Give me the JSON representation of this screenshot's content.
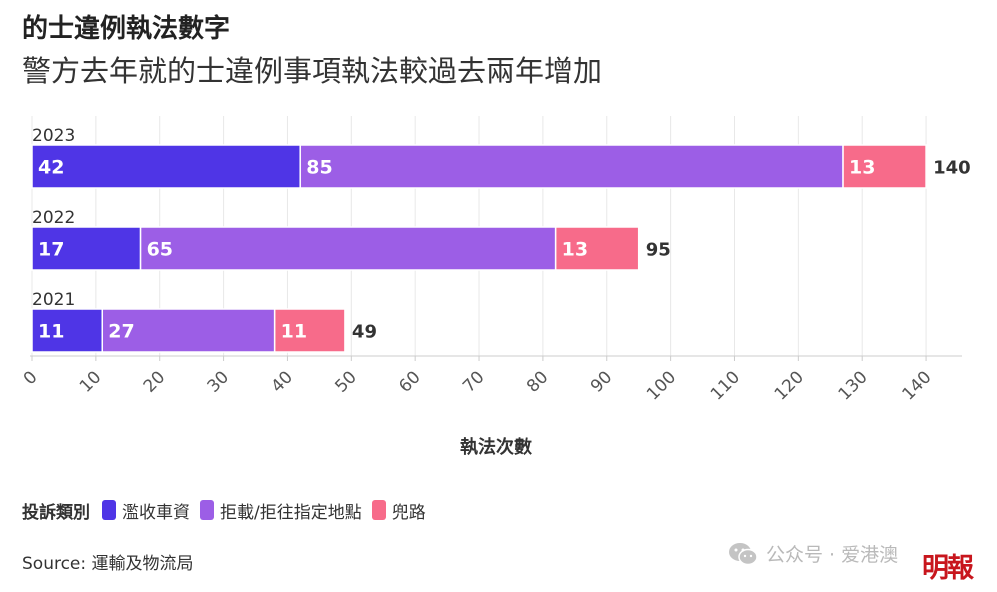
{
  "title": "的士違例執法數字",
  "subtitle": "警方去年就的士違例事項執法較過去兩年增加",
  "legend": {
    "title": "投訴類別",
    "items": [
      {
        "label": "濫收車資",
        "color": "#4f35e6"
      },
      {
        "label": "拒載/拒往指定地點",
        "color": "#9c5ee6"
      },
      {
        "label": "兜路",
        "color": "#f76b8a"
      }
    ]
  },
  "source": "Source: 運輸及物流局",
  "watermark": {
    "text": "公众号 · 爱港澳",
    "icon": "wechat-icon"
  },
  "brand_logo": "明報",
  "chart_data": {
    "type": "bar",
    "orientation": "horizontal",
    "stacked": true,
    "categories": [
      "2023",
      "2022",
      "2021"
    ],
    "series": [
      {
        "name": "濫收車資",
        "values": [
          42,
          17,
          11
        ],
        "color": "#4f35e6"
      },
      {
        "name": "拒載/拒往指定地點",
        "values": [
          85,
          65,
          27
        ],
        "color": "#9c5ee6"
      },
      {
        "name": "兜路",
        "values": [
          13,
          13,
          11
        ],
        "color": "#f76b8a"
      }
    ],
    "totals": [
      "140",
      "95",
      "49"
    ],
    "xlabel": "執法次數",
    "xlim": [
      0,
      145
    ],
    "xticks": [
      0,
      10,
      20,
      30,
      40,
      50,
      60,
      70,
      80,
      90,
      100,
      110,
      120,
      130,
      140
    ],
    "grid": true,
    "legend_position": "bottom-left"
  }
}
